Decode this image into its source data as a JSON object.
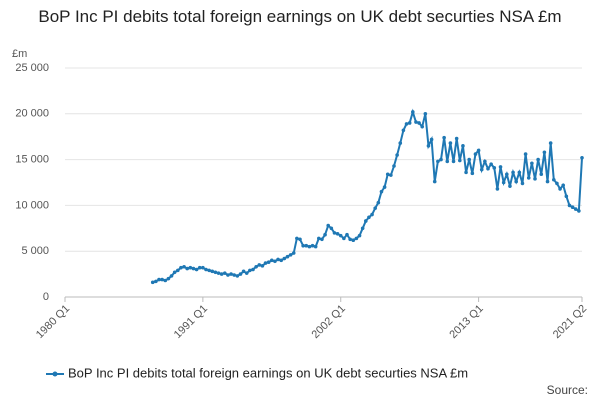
{
  "chart_data": {
    "type": "line",
    "title": "BoP Inc PI debits total foreign earnings on UK debt securties NSA £m",
    "y_label": "£m",
    "source": "Source:",
    "categories": [
      "1980 Q1",
      null,
      null,
      null,
      null,
      null,
      null,
      null,
      null,
      null,
      null,
      null,
      null,
      null,
      null,
      null,
      null,
      null,
      null,
      null,
      null,
      null,
      null,
      null,
      null,
      null,
      null,
      null,
      null,
      null,
      null,
      null,
      null,
      null,
      null,
      null,
      null,
      null,
      null,
      null,
      null,
      null,
      null,
      null,
      "1991 Q1",
      null,
      null,
      null,
      null,
      null,
      null,
      null,
      null,
      null,
      null,
      null,
      null,
      null,
      null,
      null,
      null,
      null,
      null,
      null,
      null,
      null,
      null,
      null,
      null,
      null,
      null,
      null,
      null,
      null,
      null,
      null,
      null,
      null,
      null,
      null,
      null,
      null,
      null,
      null,
      null,
      null,
      null,
      null,
      "2002 Q1",
      null,
      null,
      null,
      null,
      null,
      null,
      null,
      null,
      null,
      null,
      null,
      null,
      null,
      null,
      null,
      null,
      null,
      null,
      null,
      null,
      null,
      null,
      null,
      null,
      null,
      null,
      null,
      null,
      null,
      null,
      null,
      null,
      null,
      null,
      null,
      null,
      null,
      null,
      null,
      null,
      null,
      null,
      null,
      "2013 Q1",
      null,
      null,
      null,
      null,
      null,
      null,
      null,
      null,
      null,
      null,
      null,
      null,
      null,
      null,
      null,
      null,
      null,
      null,
      null,
      null,
      null,
      null,
      null,
      null,
      null,
      null,
      null,
      null,
      null,
      null,
      null,
      null,
      "2021 Q2"
    ],
    "series": [
      {
        "name": "BoP Inc PI debits total foreign earnings on UK debt securties NSA £m",
        "color": "#1f78b4",
        "values": [
          null,
          null,
          null,
          null,
          null,
          null,
          null,
          null,
          null,
          null,
          null,
          null,
          null,
          null,
          null,
          null,
          null,
          null,
          null,
          null,
          null,
          null,
          null,
          null,
          null,
          null,
          null,
          null,
          1600,
          1700,
          1900,
          1900,
          1800,
          2000,
          2300,
          2700,
          2900,
          3200,
          3300,
          3100,
          3200,
          3100,
          3000,
          3200,
          3200,
          3000,
          2900,
          2800,
          2700,
          2600,
          2500,
          2600,
          2400,
          2500,
          2400,
          2300,
          2500,
          2800,
          2600,
          2900,
          3000,
          3300,
          3500,
          3400,
          3700,
          3800,
          4000,
          3900,
          4100,
          4000,
          4200,
          4400,
          4600,
          4800,
          6400,
          6300,
          5600,
          5600,
          5500,
          5600,
          5500,
          6400,
          6300,
          6800,
          7800,
          7500,
          7000,
          6900,
          6700,
          6400,
          6800,
          6300,
          6200,
          6400,
          6700,
          7500,
          8300,
          8700,
          9000,
          9700,
          10300,
          11500,
          12000,
          13400,
          13300,
          14300,
          15500,
          16800,
          18200,
          18900,
          19000,
          20200,
          19100,
          19000,
          18600,
          20000,
          16500,
          17200,
          12600,
          14800,
          15000,
          17400,
          14800,
          16800,
          14800,
          17300,
          14900,
          16500,
          13600,
          15000,
          13500,
          15600,
          16000,
          13900,
          14800,
          14000,
          14500,
          14100,
          11800,
          14200,
          12500,
          13400,
          12100,
          13600,
          12600,
          13600,
          12400,
          15600,
          13000,
          14600,
          12900,
          15000,
          13400,
          15800,
          12600,
          16800,
          12800,
          12400,
          11800,
          12200,
          11000,
          10000,
          9800,
          9600,
          9400,
          15200
        ]
      }
    ],
    "ylim": [
      0,
      25000
    ],
    "yticks": [
      0,
      {
        "value": 5000,
        "label": "5 000"
      },
      {
        "value": 10000,
        "label": "10 000"
      },
      {
        "value": 15000,
        "label": "15 000"
      },
      {
        "value": 20000,
        "label": "20 000"
      },
      {
        "value": 25000,
        "label": "25 000"
      }
    ],
    "grid": true
  }
}
